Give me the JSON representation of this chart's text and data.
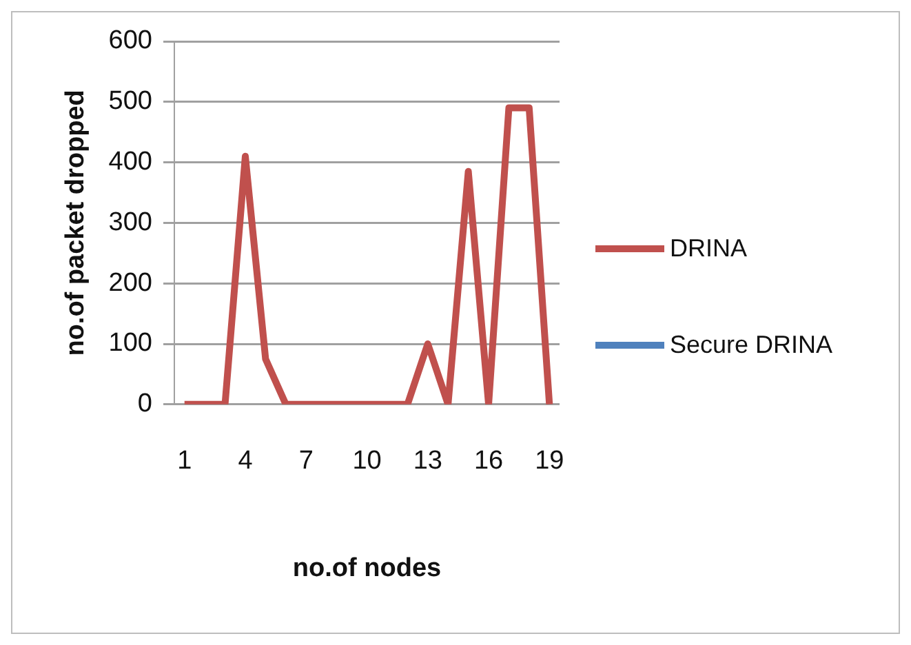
{
  "chart_data": {
    "type": "line",
    "xlabel": "no.of nodes",
    "ylabel": "no.of packet dropped",
    "categories": [
      "1",
      null,
      null,
      "4",
      null,
      null,
      "7",
      null,
      null,
      "10",
      null,
      null,
      "13",
      null,
      null,
      "16",
      null,
      null,
      "19"
    ],
    "series": [
      {
        "name": "DRINA",
        "color": "#c0504d",
        "values": [
          0,
          0,
          0,
          410,
          75,
          0,
          0,
          0,
          0,
          0,
          0,
          0,
          100,
          0,
          385,
          0,
          490,
          490,
          0
        ]
      },
      {
        "name": "Secure DRINA",
        "color": "#4f81bd",
        "values": [
          null,
          null,
          null,
          null,
          null,
          null,
          null,
          null,
          null,
          null,
          null,
          null,
          null,
          null,
          null,
          null,
          null,
          null,
          null
        ]
      }
    ],
    "ylim": [
      0,
      600
    ],
    "yticks": [
      0,
      100,
      200,
      300,
      400,
      500,
      600
    ],
    "grid": "y",
    "legend": "right",
    "marker": "none",
    "line_style": "solid"
  }
}
